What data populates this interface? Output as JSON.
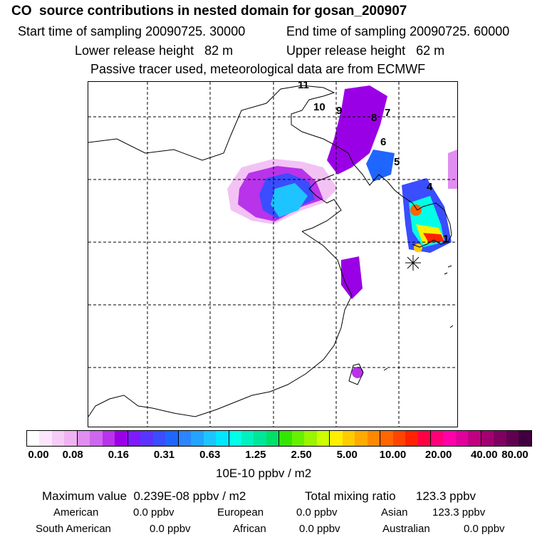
{
  "header": {
    "title": "CO  source contributions in nested domain for gosan_200907",
    "start_time": "Start time of sampling 20090725. 30000",
    "end_time": "End time of sampling 20090725. 60000",
    "lower_release": "Lower release height   82 m",
    "upper_release": "Upper release height   62 m",
    "tracer_note": "Passive tracer used, meteorological data are from ECMWF"
  },
  "map": {
    "trajectory_labels": [
      "11",
      "10",
      "9",
      "8",
      "7",
      "6",
      "5",
      "4",
      "1"
    ],
    "receptor_marker": "receptor-star"
  },
  "colorbar": {
    "ticks": [
      "0.00",
      "0.08",
      "0.16",
      "0.31",
      "0.63",
      "1.25",
      "2.50",
      "5.00",
      "10.00",
      "20.00",
      "40.00",
      "80.00"
    ],
    "colors": [
      "#ffffff",
      "#fbe6fb",
      "#f5ccf5",
      "#f0b3f2",
      "#e08ef0",
      "#cf66ee",
      "#b833ea",
      "#9a00e6",
      "#7f1aff",
      "#5a33ff",
      "#3a4dff",
      "#1f66ff",
      "#2a85ff",
      "#22a4ff",
      "#1ec4ff",
      "#00e6ff",
      "#00ffe6",
      "#00f0c0",
      "#00e699",
      "#00e066",
      "#33e600",
      "#66f000",
      "#99f500",
      "#ccff00",
      "#ffee00",
      "#ffcc00",
      "#ffaa00",
      "#ff8800",
      "#ff6600",
      "#ff4400",
      "#ff2200",
      "#ff0044",
      "#ff0077",
      "#ff00aa",
      "#e0009a",
      "#c00080",
      "#a00070",
      "#800060",
      "#600050",
      "#400040"
    ],
    "unit_label": "10E-10 ppbv / m2"
  },
  "footer": {
    "maximum_value": "Maximum value  0.239E-08 ppbv / m2",
    "total_mixing": "Total mixing ratio      123.3 ppbv",
    "american_label": "American",
    "american_value": "0.0 ppbv",
    "european_label": "European",
    "european_value": "0.0 ppbv",
    "asian_label": "Asian",
    "asian_value": "123.3 ppbv",
    "south_american_label": "South American",
    "south_american_value": "0.0 ppbv",
    "african_label": "African",
    "african_value": "0.0 ppbv",
    "australian_label": "Australian",
    "australian_value": "0.0 ppbv"
  }
}
